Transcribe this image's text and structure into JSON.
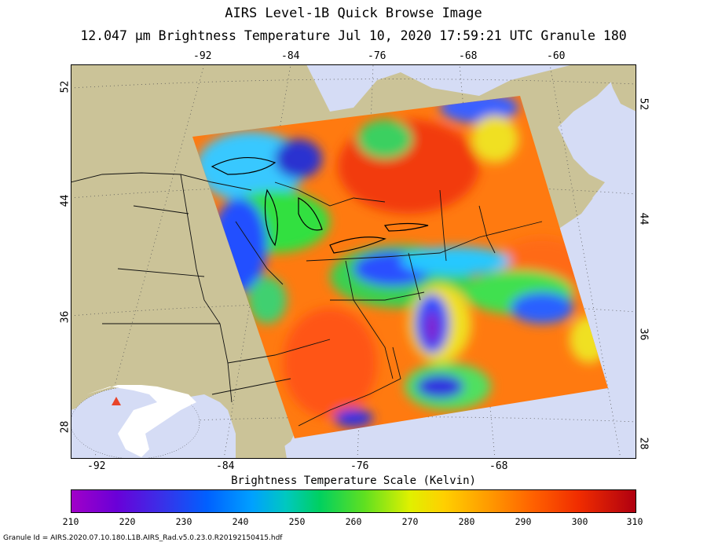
{
  "header": {
    "title": "AIRS Level-1B Quick Browse Image",
    "subtitle": "12.047 μm Brightness Temperature    Jul 10, 2020 17:59:21 UTC  Granule 180"
  },
  "map": {
    "top_lon_ticks": [
      "-92",
      "-84",
      "-76",
      "-68",
      "-60"
    ],
    "bottom_lon_ticks": [
      "-92",
      "-84",
      "-76",
      "-68"
    ],
    "left_lat_ticks": [
      "52",
      "44",
      "36",
      "28"
    ],
    "right_lat_ticks": [
      "52",
      "44",
      "36",
      "28"
    ],
    "colors": {
      "land": "#cbc398",
      "ocean": "#d5dcf5",
      "inset_land": "#ffffff",
      "granule_marker": "#e8442a"
    }
  },
  "colorbar": {
    "title": "Brightness Temperature Scale (Kelvin)",
    "ticks": [
      "210",
      "220",
      "230",
      "240",
      "250",
      "260",
      "270",
      "280",
      "290",
      "300",
      "310"
    ],
    "range": [
      210,
      310
    ]
  },
  "footer": {
    "granule_id": "Granule Id = AIRS.2020.07.10.180.L1B.AIRS_Rad.v5.0.23.0.R20192150415.hdf"
  }
}
